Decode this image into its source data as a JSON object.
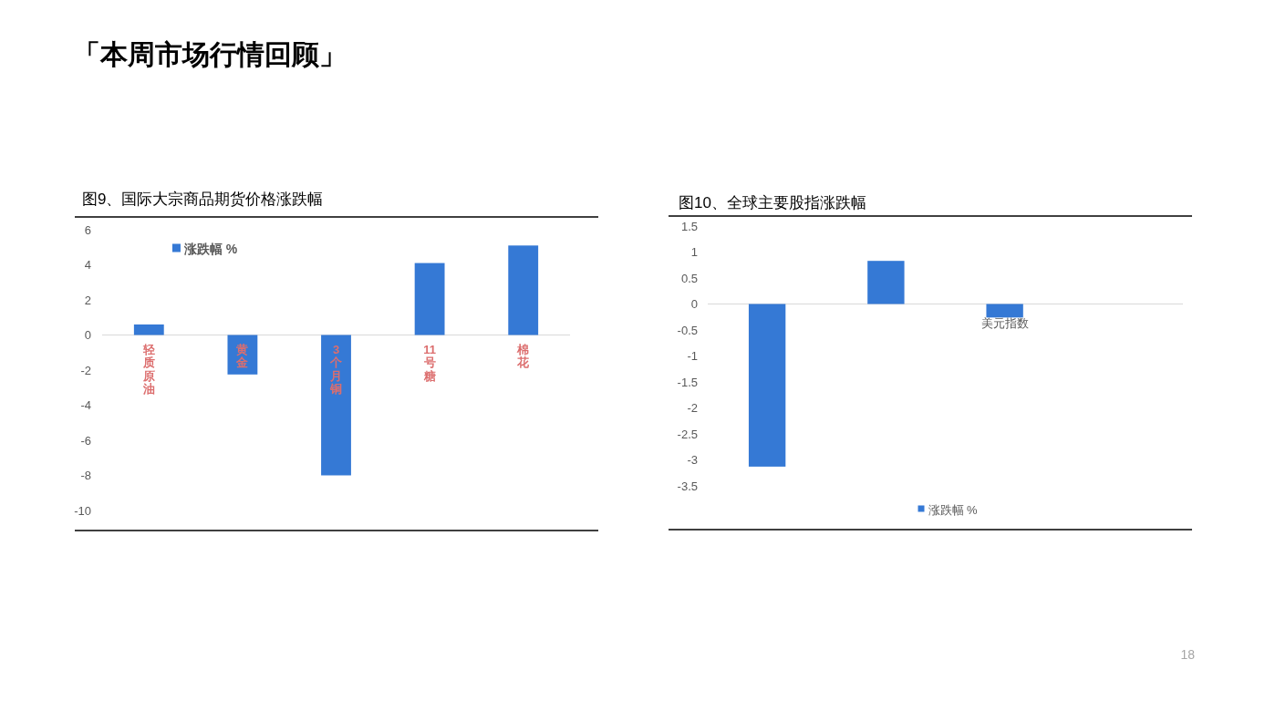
{
  "chart_data": [
    {
      "type": "bar",
      "title": "图9、国际大宗商品期货价格涨跌幅",
      "categories": [
        "轻质原油",
        "黄金",
        "3个月铜",
        "11号糖",
        "棉花"
      ],
      "series": [
        {
          "name": "涨跌幅 %",
          "color": "#3579d5",
          "values": [
            0.6,
            -2.25,
            -8.0,
            4.1,
            5.1
          ]
        }
      ],
      "ylim": [
        -10,
        6
      ],
      "yticks": [
        -10,
        -8,
        -6,
        -4,
        -2,
        0,
        2,
        4,
        6
      ],
      "legend": "top left",
      "annotations": [
        "「本周市场行情回顾」"
      ]
    },
    {
      "type": "bar",
      "title": "图10、全球主要股指涨跌幅",
      "categories": [
        null,
        null,
        "美元指数",
        null
      ],
      "series": [
        {
          "name": "涨跌幅 %",
          "color": "#3579d5",
          "values": [
            -3.13,
            0.83,
            -0.26,
            null
          ]
        }
      ],
      "ylim": [
        -3.5,
        1.5
      ],
      "yticks": [
        -3.5,
        -3,
        -2.5,
        -2,
        -1.5,
        -1,
        -0.5,
        0,
        0.5,
        1,
        1.5
      ],
      "legend": "bottom",
      "annotations": [
        "18"
      ]
    }
  ]
}
